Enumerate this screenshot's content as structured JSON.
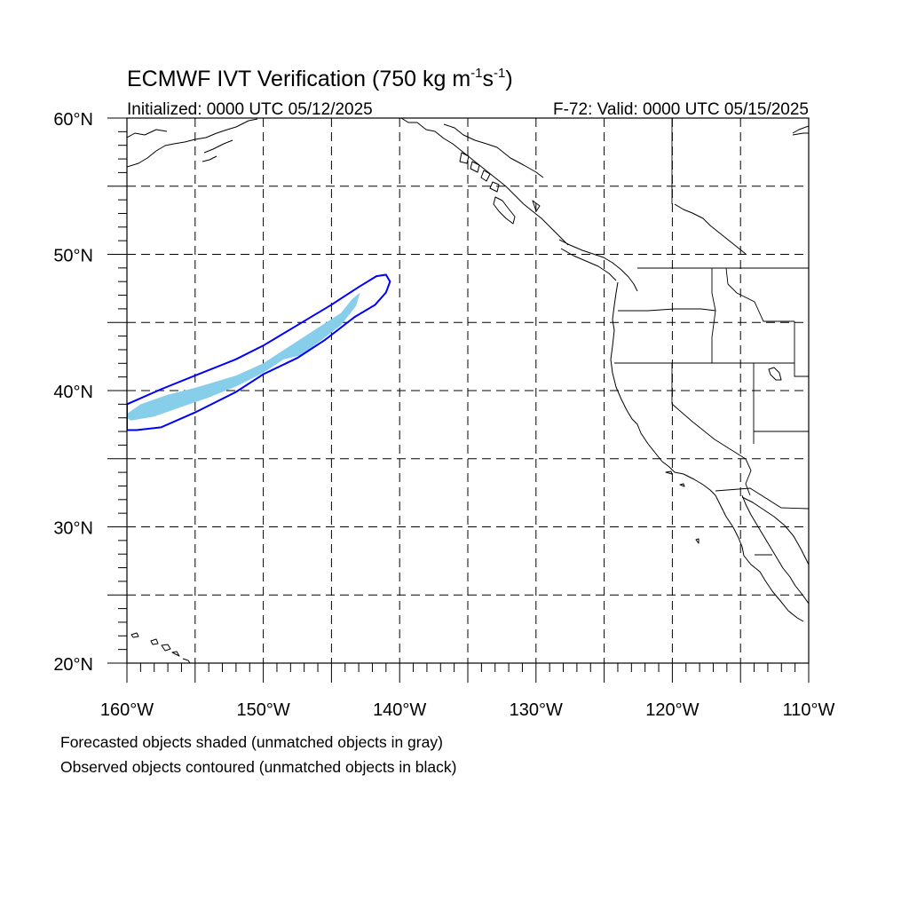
{
  "header": {
    "title_main": "ECMWF IVT Verification (750 kg m",
    "title_exp1": "-1",
    "title_mid": "s",
    "title_exp2": "-1",
    "title_end": ")",
    "initialized": "Initialized: 0000 UTC 05/12/2025",
    "valid": "F-72: Valid: 0000 UTC 05/15/2025"
  },
  "map": {
    "lon_range": [
      -160,
      -110
    ],
    "lat_range": [
      20,
      60
    ],
    "lon_ticks": [
      {
        "lon": -160,
        "label": "160°W"
      },
      {
        "lon": -150,
        "label": "150°W"
      },
      {
        "lon": -140,
        "label": "140°W"
      },
      {
        "lon": -130,
        "label": "130°W"
      },
      {
        "lon": -120,
        "label": "120°W"
      },
      {
        "lon": -110,
        "label": "110°W"
      }
    ],
    "lat_ticks": [
      {
        "lat": 20,
        "label": "20°N"
      },
      {
        "lat": 30,
        "label": "30°N"
      },
      {
        "lat": 40,
        "label": "40°N"
      },
      {
        "lat": 50,
        "label": "50°N"
      },
      {
        "lat": 60,
        "label": "60°N"
      }
    ],
    "grid_spacing_deg": 5,
    "minor_tick_deg": 1,
    "colors": {
      "forecast_fill": "#87ceeb",
      "observed_contour": "#0000ff",
      "coastline": "#000000"
    },
    "forecast_object": [
      [
        -160,
        38.3
      ],
      [
        -159,
        39.0
      ],
      [
        -157,
        39.7
      ],
      [
        -155,
        40.2
      ],
      [
        -152,
        41.1
      ],
      [
        -150,
        42.0
      ],
      [
        -148,
        43.3
      ],
      [
        -146,
        44.6
      ],
      [
        -144.3,
        45.7
      ],
      [
        -143.5,
        46.7
      ],
      [
        -142.9,
        47.2
      ],
      [
        -143.2,
        46.2
      ],
      [
        -144.3,
        44.8
      ],
      [
        -146,
        43.5
      ],
      [
        -147.2,
        42.6
      ],
      [
        -148.5,
        42.3
      ],
      [
        -150,
        41.3
      ],
      [
        -152,
        40.3
      ],
      [
        -154,
        39.5
      ],
      [
        -156,
        38.8
      ],
      [
        -158,
        38.1
      ],
      [
        -159.7,
        37.8
      ],
      [
        -160,
        38.0
      ]
    ],
    "observed_object": [
      [
        -160,
        39.0
      ],
      [
        -157.5,
        40.1
      ],
      [
        -155,
        41.1
      ],
      [
        -152,
        42.3
      ],
      [
        -150,
        43.3
      ],
      [
        -147.5,
        44.8
      ],
      [
        -145,
        46.3
      ],
      [
        -143,
        47.6
      ],
      [
        -141.7,
        48.4
      ],
      [
        -141,
        48.5
      ],
      [
        -140.7,
        48.0
      ],
      [
        -141,
        47.2
      ],
      [
        -141.8,
        46.3
      ],
      [
        -143.3,
        45.4
      ],
      [
        -145.5,
        43.7
      ],
      [
        -147.5,
        42.4
      ],
      [
        -150,
        41.2
      ],
      [
        -152,
        39.9
      ],
      [
        -155,
        38.4
      ],
      [
        -157.5,
        37.3
      ],
      [
        -159.3,
        37.1
      ],
      [
        -160,
        37.1
      ]
    ]
  },
  "notes": {
    "line1": "Forecasted objects shaded (unmatched objects in gray)",
    "line2": "Observed objects contoured (unmatched objects in black)"
  }
}
